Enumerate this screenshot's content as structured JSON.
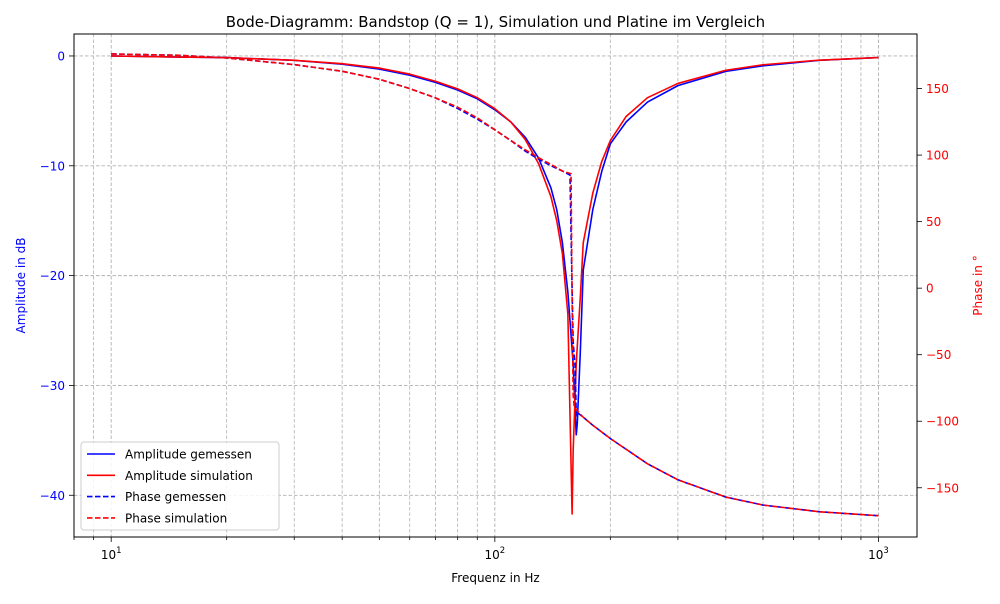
{
  "chart_data": {
    "type": "line",
    "title": "Bode-Diagramm: Bandstop (Q = 1), Simulation und Platine im Vergleich",
    "xlabel": "Frequenz in Hz",
    "ylabel_left": "Amplitude in dB",
    "ylabel_right": "Phase in °",
    "x_scale": "log",
    "xlim": [
      8,
      1260
    ],
    "ylim_left": [
      -43.8,
      2.0
    ],
    "ylim_right": [
      -187,
      191
    ],
    "x_ticks": [
      {
        "value": 10,
        "base": "10",
        "exp": "1"
      },
      {
        "value": 100,
        "base": "10",
        "exp": "2"
      },
      {
        "value": 1000,
        "base": "10",
        "exp": "3"
      }
    ],
    "y_left_ticks": [
      {
        "value": 0,
        "label": "0"
      },
      {
        "value": -10,
        "label": "−10"
      },
      {
        "value": -20,
        "label": "−20"
      },
      {
        "value": -30,
        "label": "−30"
      },
      {
        "value": -40,
        "label": "−40"
      }
    ],
    "y_right_ticks": [
      {
        "value": 150,
        "label": "150"
      },
      {
        "value": 100,
        "label": "100"
      },
      {
        "value": 50,
        "label": "50"
      },
      {
        "value": 0,
        "label": "0"
      },
      {
        "value": -50,
        "label": "−50"
      },
      {
        "value": -100,
        "label": "−100"
      },
      {
        "value": -150,
        "label": "−150"
      }
    ],
    "grid": true,
    "legend_position": "lower-left",
    "colors": {
      "measured": "#0000ff",
      "simulation": "#ff0000",
      "right_axis": "#ff0000",
      "left_axis": "#0000ff"
    },
    "series": [
      {
        "name": "Amplitude gemessen",
        "axis": "left",
        "style": "solid",
        "color": "#0000ff",
        "points": [
          [
            10,
            0
          ],
          [
            15,
            -0.1
          ],
          [
            20,
            -0.15
          ],
          [
            30,
            -0.4
          ],
          [
            40,
            -0.75
          ],
          [
            50,
            -1.2
          ],
          [
            60,
            -1.75
          ],
          [
            70,
            -2.4
          ],
          [
            80,
            -3.1
          ],
          [
            90,
            -3.9
          ],
          [
            100,
            -4.9
          ],
          [
            110,
            -6.0
          ],
          [
            120,
            -7.4
          ],
          [
            130,
            -9.3
          ],
          [
            140,
            -12.0
          ],
          [
            145,
            -14.0
          ],
          [
            150,
            -17.0
          ],
          [
            155,
            -21.5
          ],
          [
            160,
            -28.0
          ],
          [
            163,
            -34.5
          ],
          [
            164,
            -33.5
          ],
          [
            167,
            -27.0
          ],
          [
            170,
            -19.5
          ],
          [
            180,
            -14.0
          ],
          [
            190,
            -10.5
          ],
          [
            200,
            -8.0
          ],
          [
            220,
            -6.0
          ],
          [
            250,
            -4.2
          ],
          [
            300,
            -2.7
          ],
          [
            400,
            -1.4
          ],
          [
            500,
            -0.9
          ],
          [
            700,
            -0.4
          ],
          [
            1000,
            -0.15
          ]
        ]
      },
      {
        "name": "Amplitude simulation",
        "axis": "left",
        "style": "solid",
        "color": "#ff0000",
        "points": [
          [
            10,
            0
          ],
          [
            15,
            -0.1
          ],
          [
            20,
            -0.15
          ],
          [
            30,
            -0.4
          ],
          [
            40,
            -0.7
          ],
          [
            50,
            -1.1
          ],
          [
            60,
            -1.65
          ],
          [
            70,
            -2.3
          ],
          [
            80,
            -3.0
          ],
          [
            90,
            -3.8
          ],
          [
            100,
            -4.8
          ],
          [
            110,
            -6.0
          ],
          [
            120,
            -7.6
          ],
          [
            130,
            -9.8
          ],
          [
            140,
            -12.8
          ],
          [
            145,
            -15.0
          ],
          [
            150,
            -18.0
          ],
          [
            155,
            -23.5
          ],
          [
            159,
            -41.7
          ],
          [
            160,
            -36.0
          ],
          [
            163,
            -28.0
          ],
          [
            167,
            -22.0
          ],
          [
            170,
            -17.0
          ],
          [
            180,
            -12.5
          ],
          [
            190,
            -9.6
          ],
          [
            200,
            -7.7
          ],
          [
            220,
            -5.5
          ],
          [
            250,
            -3.8
          ],
          [
            300,
            -2.5
          ],
          [
            400,
            -1.3
          ],
          [
            500,
            -0.8
          ],
          [
            700,
            -0.38
          ],
          [
            1000,
            -0.15
          ]
        ]
      },
      {
        "name": "Phase gemessen",
        "axis": "right",
        "style": "dashed",
        "color": "#0000ff",
        "points": [
          [
            10,
            176
          ],
          [
            15,
            175
          ],
          [
            20,
            173
          ],
          [
            30,
            168
          ],
          [
            40,
            163
          ],
          [
            50,
            157
          ],
          [
            60,
            150
          ],
          [
            70,
            143
          ],
          [
            80,
            135
          ],
          [
            90,
            127
          ],
          [
            100,
            119
          ],
          [
            110,
            111
          ],
          [
            120,
            103
          ],
          [
            130,
            97
          ],
          [
            140,
            92
          ],
          [
            150,
            88
          ],
          [
            157,
            85
          ],
          [
            158,
            40
          ],
          [
            160,
            -40
          ],
          [
            162,
            -60
          ],
          [
            163,
            -96
          ],
          [
            165,
            -94
          ],
          [
            170,
            -97
          ],
          [
            180,
            -103
          ],
          [
            200,
            -113
          ],
          [
            250,
            -132
          ],
          [
            300,
            -144
          ],
          [
            400,
            -157
          ],
          [
            500,
            -163
          ],
          [
            700,
            -168
          ],
          [
            1000,
            -171
          ]
        ]
      },
      {
        "name": "Phase simulation",
        "axis": "right",
        "style": "dashed",
        "color": "#ff0000",
        "points": [
          [
            10,
            176
          ],
          [
            15,
            175
          ],
          [
            20,
            173
          ],
          [
            30,
            168
          ],
          [
            40,
            163
          ],
          [
            50,
            157
          ],
          [
            60,
            150
          ],
          [
            70,
            143
          ],
          [
            80,
            136
          ],
          [
            90,
            128
          ],
          [
            100,
            119
          ],
          [
            110,
            111
          ],
          [
            120,
            104
          ],
          [
            130,
            98
          ],
          [
            140,
            93
          ],
          [
            150,
            88
          ],
          [
            158,
            86
          ],
          [
            159,
            -10
          ],
          [
            160,
            -80
          ],
          [
            161,
            -89
          ],
          [
            165,
            -93
          ],
          [
            170,
            -97
          ],
          [
            180,
            -103
          ],
          [
            200,
            -113
          ],
          [
            250,
            -132
          ],
          [
            300,
            -144
          ],
          [
            400,
            -157
          ],
          [
            500,
            -163
          ],
          [
            700,
            -168
          ],
          [
            1000,
            -171
          ]
        ]
      }
    ]
  }
}
